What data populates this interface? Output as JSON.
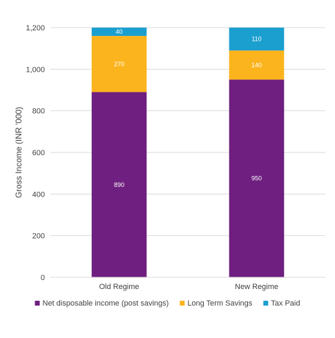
{
  "chart_data": {
    "type": "bar",
    "stacked": true,
    "title": "",
    "xlabel": "",
    "ylabel": "Gross Income  (INR '000)",
    "ylim": [
      0,
      1200
    ],
    "yticks": [
      0,
      200,
      400,
      600,
      800,
      1000,
      1200
    ],
    "ytick_labels": [
      "0",
      "200",
      "400",
      "600",
      "800",
      "1,000",
      "1,200"
    ],
    "grid": true,
    "legend_position": "bottom",
    "categories": [
      "Old Regime",
      "New Regime"
    ],
    "series": [
      {
        "name": "Net disposable income (post savings)",
        "color": "#6e1f7f",
        "values": [
          890,
          950
        ],
        "labels": [
          "890",
          "950"
        ]
      },
      {
        "name": "Long Term Savings",
        "color": "#fbb41d",
        "values": [
          270,
          140
        ],
        "labels": [
          "270",
          "140"
        ]
      },
      {
        "name": "Tax Paid",
        "color": "#1b9fcf",
        "values": [
          40,
          110
        ],
        "labels": [
          "40",
          "110"
        ]
      }
    ]
  }
}
